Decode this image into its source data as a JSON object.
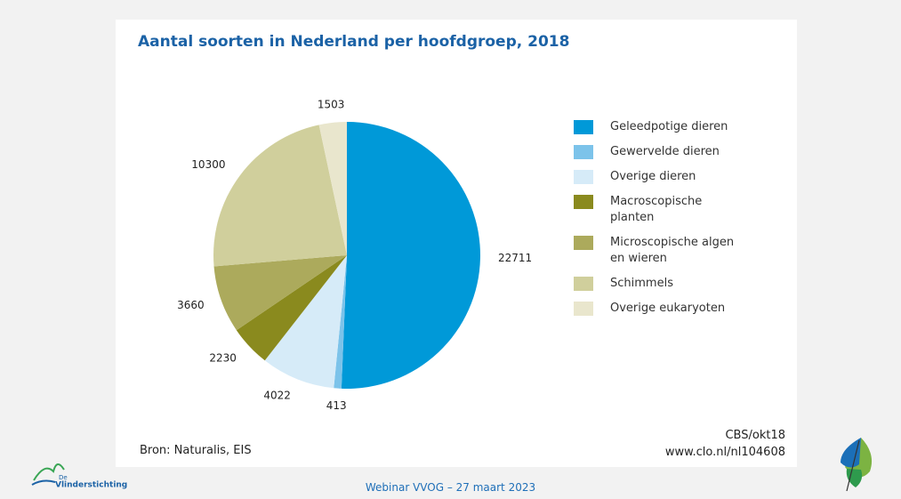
{
  "chart_data": {
    "type": "pie",
    "title": "Aantal soorten in Nederland per hoofdgroep, 2018",
    "categories": [
      "Geleedpotige dieren",
      "Gewervelde dieren",
      "Overige dieren",
      "Macroscopische planten",
      "Microscopische algen en wieren",
      "Schimmels",
      "Overige eukaryoten"
    ],
    "values": [
      22711,
      413,
      4022,
      2230,
      3660,
      10300,
      1503
    ],
    "colors": [
      "#0099d8",
      "#7cc3ea",
      "#d6ebf8",
      "#8a8a1e",
      "#acaa5c",
      "#d0cf9c",
      "#e9e6cd"
    ],
    "legend": "right"
  },
  "source": "Bron: Naturalis, EIS",
  "credits": [
    "CBS/okt18",
    "www.clo.nl/nl104608"
  ],
  "footer": "Webinar VVOG – 27 maart 2023",
  "logo": {
    "prefix": "De",
    "name": "Vlinderstichting"
  }
}
